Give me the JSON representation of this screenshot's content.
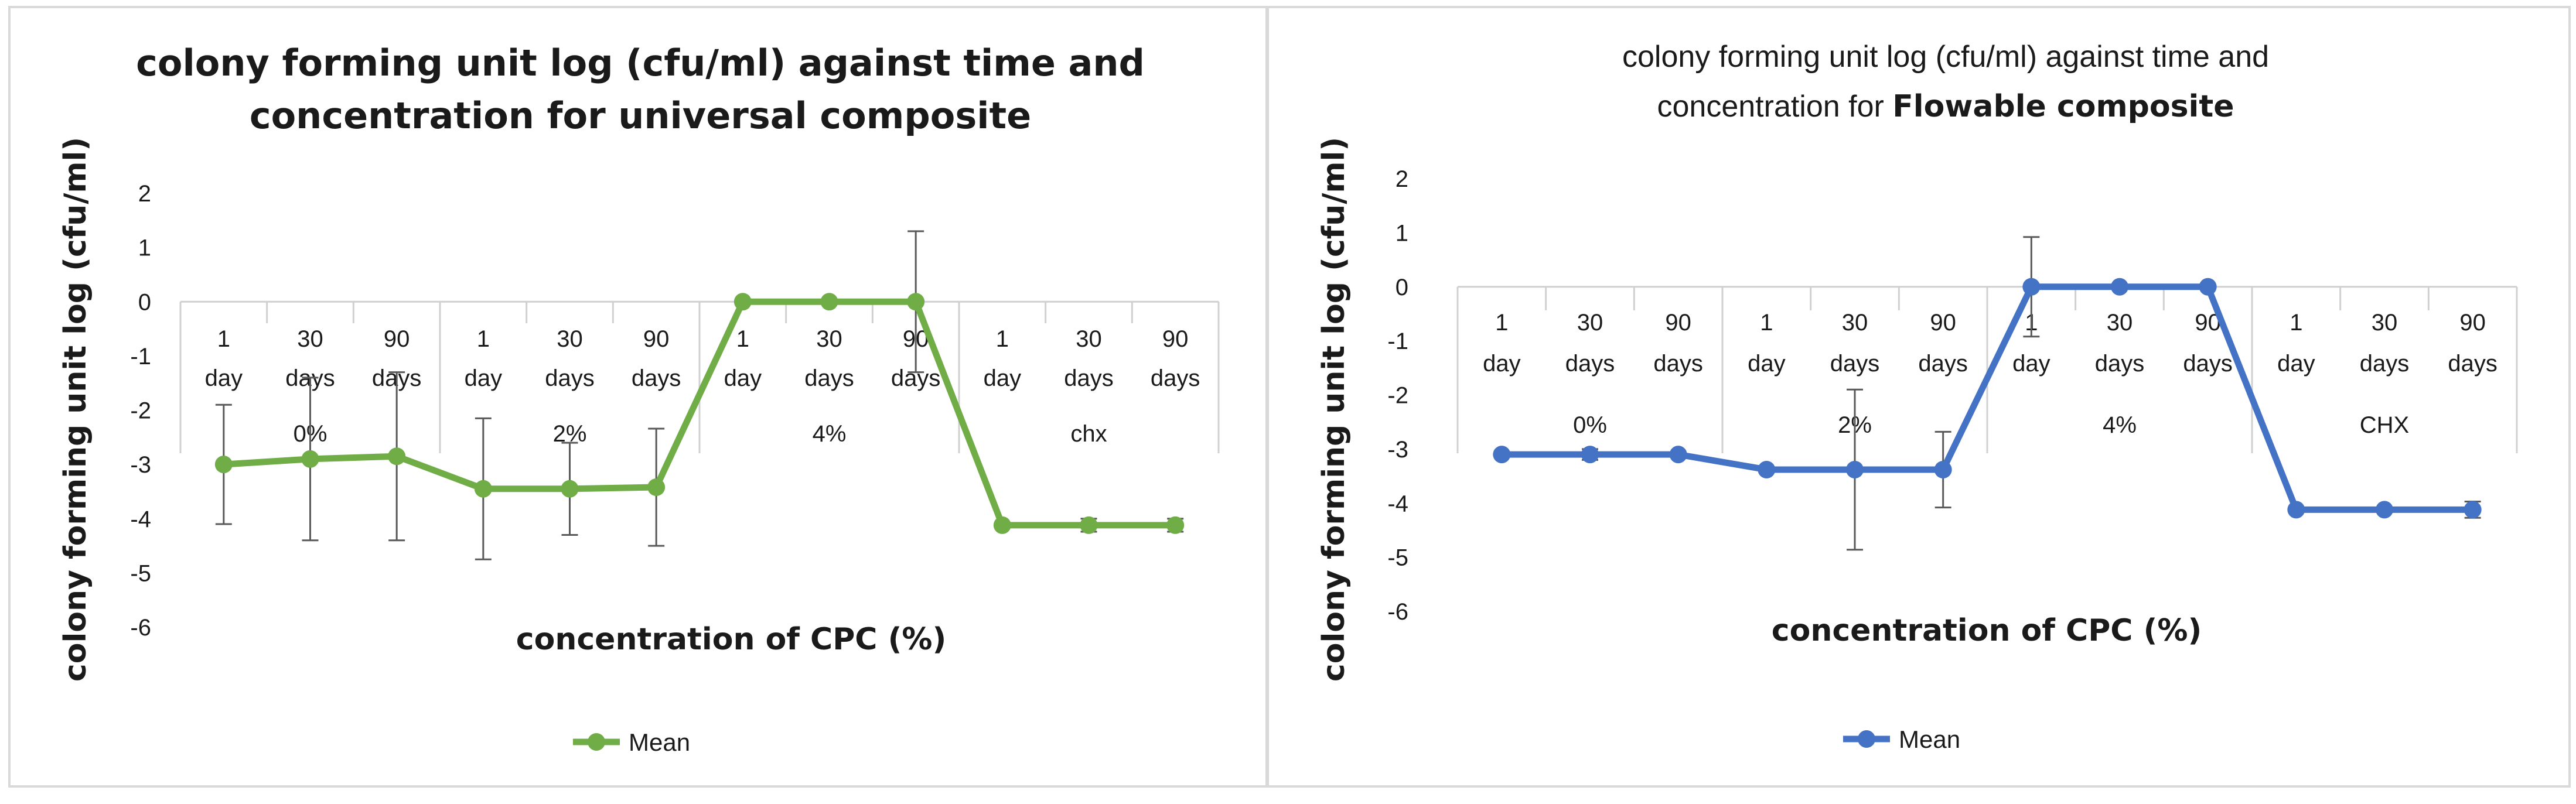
{
  "chart_data": [
    {
      "type": "line",
      "title_lines": [
        "colony forming unit log (cfu/ml) against time and",
        "concentration for universal composite"
      ],
      "xlabel": "concentration of CPC (%)",
      "ylabel": "colony forming unit log (cfu/ml)",
      "ylim": [
        -6,
        2
      ],
      "yticks": [
        "2",
        "1",
        "0",
        "-1",
        "-2",
        "-3",
        "-4",
        "-5",
        "-6"
      ],
      "categories": [
        {
          "top": "1",
          "bottom": "day"
        },
        {
          "top": "30",
          "bottom": "days"
        },
        {
          "top": "90",
          "bottom": "days"
        },
        {
          "top": "1",
          "bottom": "day"
        },
        {
          "top": "30",
          "bottom": "days"
        },
        {
          "top": "90",
          "bottom": "days"
        },
        {
          "top": "1",
          "bottom": "day"
        },
        {
          "top": "30",
          "bottom": "days"
        },
        {
          "top": "90",
          "bottom": "days"
        },
        {
          "top": "1",
          "bottom": "day"
        },
        {
          "top": "30",
          "bottom": "days"
        },
        {
          "top": "90",
          "bottom": "days"
        }
      ],
      "groups": [
        "0%",
        "2%",
        "4%",
        "chx"
      ],
      "series": [
        {
          "name": "Mean",
          "color": "#70ad47",
          "values": [
            -3.0,
            -2.9,
            -2.85,
            -3.45,
            -3.45,
            -3.42,
            0,
            0,
            0,
            -4.12,
            -4.12,
            -4.12
          ],
          "error": [
            1.1,
            1.5,
            1.55,
            1.3,
            0.85,
            1.08,
            0,
            0,
            1.3,
            0,
            0.12,
            0.12
          ]
        }
      ]
    },
    {
      "type": "line",
      "title_lines": [
        "colony forming unit log (cfu/ml) against time and",
        "concentration for"
      ],
      "title_bold_tail": "Flowable composite",
      "xlabel": "concentration of CPC (%)",
      "ylabel": "colony forming unit log (cfu/ml)",
      "ylim": [
        -6,
        2
      ],
      "yticks": [
        "2",
        "1",
        "0",
        "-1",
        "-2",
        "-3",
        "-4",
        "-5",
        "-6"
      ],
      "categories": [
        {
          "top": "1",
          "bottom": "day"
        },
        {
          "top": "30",
          "bottom": "days"
        },
        {
          "top": "90",
          "bottom": "days"
        },
        {
          "top": "1",
          "bottom": "day"
        },
        {
          "top": "30",
          "bottom": "days"
        },
        {
          "top": "90",
          "bottom": "days"
        },
        {
          "top": "1",
          "bottom": "day"
        },
        {
          "top": "30",
          "bottom": "days"
        },
        {
          "top": "90",
          "bottom": "days"
        },
        {
          "top": "1",
          "bottom": "day"
        },
        {
          "top": "30",
          "bottom": "days"
        },
        {
          "top": "90",
          "bottom": "days"
        }
      ],
      "groups": [
        "0%",
        "2%",
        "4%",
        "CHX"
      ],
      "series": [
        {
          "name": "Mean",
          "color": "#4472c4",
          "values": [
            -3.1,
            -3.1,
            -3.1,
            -3.38,
            -3.38,
            -3.38,
            0,
            0,
            0,
            -4.12,
            -4.12,
            -4.12
          ],
          "error": [
            0,
            0.1,
            0,
            0,
            1.48,
            0.7,
            0.92,
            0,
            0,
            0,
            0,
            0.15
          ]
        }
      ]
    }
  ]
}
